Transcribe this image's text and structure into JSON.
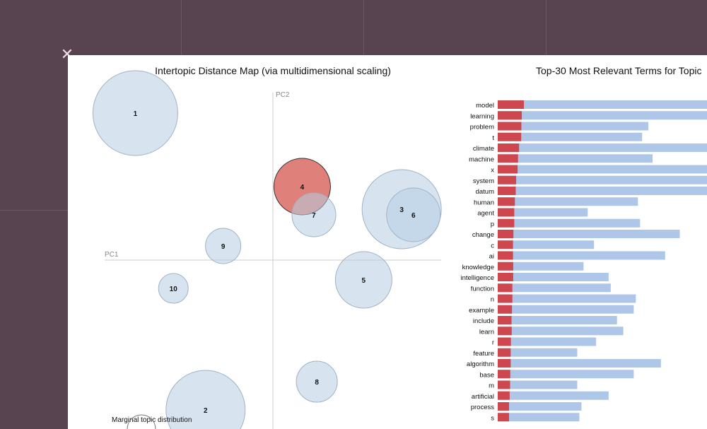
{
  "window": {
    "close_icon": "close-icon",
    "accent_color": "#d6564f",
    "bubble_color": "#b7cde3",
    "bar_overall_color": "#aec7e8",
    "bar_topic_color": "#d62728"
  },
  "chart_data": [
    {
      "type": "scatter",
      "title": "Intertopic Distance Map (via multidimensional scaling)",
      "xlabel": "PC1",
      "ylabel": "PC2",
      "grid": false,
      "xlim": [
        -0.6,
        0.55
      ],
      "ylim": [
        -0.6,
        0.6
      ],
      "selected_topic": "4",
      "points": [
        {
          "label": "1",
          "x": -0.47,
          "y": 0.52,
          "size": 60
        },
        {
          "label": "2",
          "x": -0.23,
          "y": -0.53,
          "size": 56
        },
        {
          "label": "3",
          "x": 0.44,
          "y": 0.18,
          "size": 56
        },
        {
          "label": "4",
          "x": 0.1,
          "y": 0.26,
          "size": 40
        },
        {
          "label": "5",
          "x": 0.31,
          "y": -0.07,
          "size": 40
        },
        {
          "label": "6",
          "x": 0.48,
          "y": 0.16,
          "size": 38
        },
        {
          "label": "7",
          "x": 0.14,
          "y": 0.16,
          "size": 31
        },
        {
          "label": "8",
          "x": 0.15,
          "y": -0.43,
          "size": 29
        },
        {
          "label": "9",
          "x": -0.17,
          "y": 0.05,
          "size": 25
        },
        {
          "label": "10",
          "x": -0.34,
          "y": -0.1,
          "size": 21
        }
      ],
      "marginal_label": "Marginal topic distribution"
    },
    {
      "type": "bar",
      "title": "Top-30 Most Relevant Terms for Topic",
      "orientation": "horizontal",
      "xlim": [
        0,
        100
      ],
      "categories": [
        "model",
        "learning",
        "problem",
        "t",
        "climate",
        "machine",
        "x",
        "system",
        "datum",
        "human",
        "agent",
        "p",
        "change",
        "c",
        "ai",
        "knowledge",
        "intelligence",
        "function",
        "n",
        "example",
        "include",
        "learn",
        "r",
        "feature",
        "algorithm",
        "base",
        "m",
        "artificial",
        "process",
        "s"
      ],
      "series": [
        {
          "values": [
            100,
            100,
            72,
            69,
            100,
            74,
            100,
            100,
            100,
            67,
            43,
            68,
            87,
            46,
            80,
            41,
            53,
            54,
            66,
            65,
            57,
            60,
            47,
            38,
            78,
            65,
            38,
            53,
            40,
            39
          ]
        },
        {
          "values": [
            12.5,
            11.5,
            11.3,
            11.2,
            10.2,
            9.7,
            9.5,
            8.8,
            8.6,
            8.2,
            7.9,
            7.9,
            7.5,
            7.3,
            7.3,
            7.4,
            7.4,
            7.0,
            7.0,
            6.8,
            6.6,
            6.7,
            6.3,
            6.2,
            6.2,
            6.0,
            5.9,
            5.7,
            5.4,
            5.4
          ]
        }
      ]
    }
  ]
}
